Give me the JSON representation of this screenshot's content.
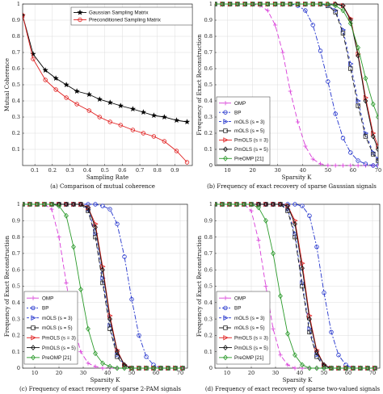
{
  "chart_data": [
    {
      "type": "line",
      "panel": "a",
      "caption": "(a) Comparison of mutual coherence",
      "xlabel": "Sampling Rate",
      "ylabel": "Mutual Coherence",
      "xlim": [
        0.03,
        1.0
      ],
      "ylim": [
        0.0,
        1.0
      ],
      "xticks": [
        "0.1",
        "0.2",
        "0.3",
        "0.4",
        "0.5",
        "0.6",
        "0.7",
        "0.8",
        "0.9"
      ],
      "yticks": [
        "0.1",
        "0.2",
        "0.3",
        "0.4",
        "0.5",
        "0.6",
        "0.7",
        "0.8",
        "0.9",
        "1"
      ],
      "grid": true,
      "legend_position": "top-right",
      "series": [
        {
          "name": "Gaussian Sampling Matrix",
          "color": "#000000",
          "marker": "star",
          "dash": "",
          "x": [
            0.03,
            0.09,
            0.16,
            0.22,
            0.28,
            0.34,
            0.41,
            0.47,
            0.53,
            0.59,
            0.66,
            0.72,
            0.78,
            0.84,
            0.91,
            0.97
          ],
          "y": [
            0.93,
            0.69,
            0.59,
            0.54,
            0.5,
            0.46,
            0.44,
            0.41,
            0.39,
            0.37,
            0.35,
            0.33,
            0.31,
            0.3,
            0.28,
            0.27
          ]
        },
        {
          "name": "Preconditioned Sampling Matrix",
          "color": "#e01e1e",
          "marker": "circle",
          "dash": "",
          "x": [
            0.03,
            0.09,
            0.16,
            0.22,
            0.28,
            0.34,
            0.41,
            0.47,
            0.53,
            0.59,
            0.66,
            0.72,
            0.78,
            0.84,
            0.91,
            0.97
          ],
          "y": [
            0.93,
            0.66,
            0.53,
            0.47,
            0.42,
            0.38,
            0.34,
            0.3,
            0.27,
            0.25,
            0.22,
            0.2,
            0.18,
            0.15,
            0.09,
            0.02
          ]
        }
      ]
    },
    {
      "type": "line",
      "panel": "b",
      "caption": "(b) Frequency of exact recovery of sparse Gaussian signals",
      "xlabel": "Sparsity K",
      "ylabel": "Frequency of Exact Reconstruction",
      "xlim": [
        5,
        70
      ],
      "ylim": [
        0,
        1
      ],
      "xticks": [
        "10",
        "20",
        "30",
        "40",
        "50",
        "60",
        "70"
      ],
      "yticks": [
        "0",
        "0.1",
        "0.2",
        "0.3",
        "0.4",
        "0.5",
        "0.6",
        "0.7",
        "0.8",
        "0.9",
        "1"
      ],
      "grid": true,
      "legend_position": "bottom-left",
      "x": [
        5,
        8,
        11,
        14,
        17,
        20,
        23,
        26,
        29,
        32,
        35,
        38,
        41,
        44,
        47,
        50,
        53,
        56,
        59,
        62,
        65,
        68,
        70
      ],
      "series": [
        {
          "name": "OMP",
          "color": "#d83ad8",
          "marker": "plus",
          "dash": "6,3",
          "values": [
            1,
            1,
            1,
            1,
            1,
            1,
            0.99,
            0.96,
            0.87,
            0.7,
            0.46,
            0.27,
            0.12,
            0.04,
            0.01,
            0,
            0,
            0,
            0,
            0,
            0,
            0,
            0
          ]
        },
        {
          "name": "BP",
          "color": "#2233cc",
          "marker": "circle",
          "dash": "2,2,6,2",
          "values": [
            1,
            1,
            1,
            1,
            1,
            1,
            1,
            1,
            1,
            1,
            1,
            0.99,
            0.96,
            0.87,
            0.71,
            0.52,
            0.32,
            0.17,
            0.08,
            0.03,
            0.01,
            0,
            0
          ]
        },
        {
          "name": "mOLS (s = 3)",
          "color": "#2233cc",
          "marker": "triangle-right",
          "dash": "3,3",
          "values": [
            1,
            1,
            1,
            1,
            1,
            1,
            1,
            1,
            1,
            1,
            1,
            1,
            1,
            1,
            1,
            0.99,
            0.96,
            0.84,
            0.63,
            0.4,
            0.2,
            0.08,
            0.04
          ]
        },
        {
          "name": "mOLS (s = 5)",
          "color": "#222222",
          "marker": "square",
          "dash": "6,3",
          "values": [
            1,
            1,
            1,
            1,
            1,
            1,
            1,
            1,
            1,
            1,
            1,
            1,
            1,
            1,
            1,
            0.99,
            0.95,
            0.82,
            0.6,
            0.37,
            0.18,
            0.07,
            0.03
          ]
        },
        {
          "name": "PmOLS (s = 3)",
          "color": "#e01e1e",
          "marker": "triangle-right",
          "dash": "",
          "values": [
            1,
            1,
            1,
            1,
            1,
            1,
            1,
            1,
            1,
            1,
            1,
            1,
            1,
            1,
            1,
            1,
            1,
            0.99,
            0.91,
            0.69,
            0.42,
            0.2,
            0.12
          ]
        },
        {
          "name": "PmOLS (s = 5)",
          "color": "#111111",
          "marker": "diamond",
          "dash": "",
          "values": [
            1,
            1,
            1,
            1,
            1,
            1,
            1,
            1,
            1,
            1,
            1,
            1,
            1,
            1,
            1,
            1,
            1,
            0.99,
            0.9,
            0.68,
            0.4,
            0.18,
            0.1
          ]
        },
        {
          "name": "PreOMP [21]",
          "color": "#2a9a2a",
          "marker": "diamond",
          "dash": "",
          "values": [
            1,
            1,
            1,
            1,
            1,
            1,
            1,
            1,
            1,
            1,
            1,
            1,
            1,
            1,
            1,
            1,
            0.99,
            0.96,
            0.88,
            0.73,
            0.54,
            0.38,
            0.3
          ]
        }
      ]
    },
    {
      "type": "line",
      "panel": "c",
      "caption": "(c) Frequency of exact recovery of sparse 2-PAM signals",
      "xlabel": "Sparsity K",
      "ylabel": "Frequency of Exact Reconstruction",
      "xlim": [
        5,
        73
      ],
      "ylim": [
        0,
        1
      ],
      "xticks": [
        "10",
        "20",
        "30",
        "40",
        "50",
        "60",
        "70"
      ],
      "yticks": [
        "0",
        "0.1",
        "0.2",
        "0.3",
        "0.4",
        "0.5",
        "0.6",
        "0.7",
        "0.8",
        "0.9",
        "1"
      ],
      "grid": true,
      "legend_position": "bottom-left",
      "x": [
        5,
        8,
        11,
        14,
        17,
        20,
        23,
        26,
        29,
        32,
        35,
        38,
        41,
        44,
        47,
        50,
        53,
        56,
        59,
        62,
        65,
        68,
        71
      ],
      "series": [
        {
          "name": "OMP",
          "color": "#d83ad8",
          "marker": "plus",
          "dash": "6,3",
          "values": [
            1,
            1,
            1,
            1,
            0.97,
            0.8,
            0.52,
            0.26,
            0.1,
            0.03,
            0.01,
            0,
            0,
            0,
            0,
            0,
            0,
            0,
            0,
            0,
            0,
            0,
            0
          ]
        },
        {
          "name": "BP",
          "color": "#2233cc",
          "marker": "circle",
          "dash": "2,2,6,2",
          "values": [
            1,
            1,
            1,
            1,
            1,
            1,
            1,
            1,
            1,
            1,
            1,
            0.99,
            0.97,
            0.88,
            0.68,
            0.42,
            0.2,
            0.07,
            0.02,
            0,
            0,
            0,
            0
          ]
        },
        {
          "name": "mOLS (s = 3)",
          "color": "#2233cc",
          "marker": "triangle-right",
          "dash": "3,3",
          "values": [
            1,
            1,
            1,
            1,
            1,
            1,
            1,
            1,
            1,
            0.97,
            0.82,
            0.55,
            0.26,
            0.08,
            0.02,
            0,
            0,
            0,
            0,
            0,
            0,
            0,
            0
          ]
        },
        {
          "name": "mOLS (s = 5)",
          "color": "#222222",
          "marker": "square",
          "dash": "6,3",
          "values": [
            1,
            1,
            1,
            1,
            1,
            1,
            1,
            1,
            1,
            0.96,
            0.8,
            0.52,
            0.24,
            0.07,
            0.01,
            0,
            0,
            0,
            0,
            0,
            0,
            0,
            0
          ]
        },
        {
          "name": "PmOLS (s = 3)",
          "color": "#e01e1e",
          "marker": "triangle-right",
          "dash": "",
          "values": [
            1,
            1,
            1,
            1,
            1,
            1,
            1,
            1,
            1,
            0.98,
            0.88,
            0.62,
            0.32,
            0.11,
            0.02,
            0,
            0,
            0,
            0,
            0,
            0,
            0,
            0
          ]
        },
        {
          "name": "PmOLS (s = 5)",
          "color": "#111111",
          "marker": "diamond",
          "dash": "",
          "values": [
            1,
            1,
            1,
            1,
            1,
            1,
            1,
            1,
            1,
            0.98,
            0.86,
            0.6,
            0.3,
            0.1,
            0.02,
            0,
            0,
            0,
            0,
            0,
            0,
            0,
            0
          ]
        },
        {
          "name": "PreOMP [21]",
          "color": "#2a9a2a",
          "marker": "diamond",
          "dash": "",
          "values": [
            1,
            1,
            1,
            1,
            1,
            0.99,
            0.93,
            0.74,
            0.48,
            0.24,
            0.09,
            0.03,
            0.01,
            0,
            0,
            0,
            0,
            0,
            0,
            0,
            0,
            0,
            0
          ]
        }
      ]
    },
    {
      "type": "line",
      "panel": "d",
      "caption": "(d) Frequency of exact recovery of sparse two-valued signals",
      "xlabel": "Sparsity K",
      "ylabel": "Frequency of Exact Reconstruction",
      "xlim": [
        5,
        73
      ],
      "ylim": [
        0,
        1
      ],
      "xticks": [
        "10",
        "20",
        "30",
        "40",
        "50",
        "60",
        "70"
      ],
      "yticks": [
        "0",
        "0.1",
        "0.2",
        "0.3",
        "0.4",
        "0.5",
        "0.6",
        "0.7",
        "0.8",
        "0.9",
        "1"
      ],
      "grid": true,
      "legend_position": "bottom-left",
      "x": [
        5,
        8,
        11,
        14,
        17,
        20,
        23,
        26,
        29,
        32,
        35,
        38,
        41,
        44,
        47,
        50,
        53,
        56,
        59,
        62,
        65,
        68,
        71
      ],
      "series": [
        {
          "name": "OMP",
          "color": "#d83ad8",
          "marker": "plus",
          "dash": "6,3",
          "values": [
            1,
            1,
            1,
            1,
            1,
            0.96,
            0.78,
            0.5,
            0.24,
            0.08,
            0.02,
            0,
            0,
            0,
            0,
            0,
            0,
            0,
            0,
            0,
            0,
            0,
            0
          ]
        },
        {
          "name": "BP",
          "color": "#2233cc",
          "marker": "circle",
          "dash": "2,2,6,2",
          "values": [
            1,
            1,
            1,
            1,
            1,
            1,
            1,
            1,
            1,
            1,
            1,
            1,
            0.99,
            0.93,
            0.74,
            0.46,
            0.22,
            0.08,
            0.02,
            0,
            0,
            0,
            0
          ]
        },
        {
          "name": "mOLS (s = 3)",
          "color": "#2233cc",
          "marker": "triangle-right",
          "dash": "3,3",
          "values": [
            1,
            1,
            1,
            1,
            1,
            1,
            1,
            1,
            1,
            1,
            0.97,
            0.82,
            0.52,
            0.24,
            0.08,
            0.02,
            0,
            0,
            0,
            0,
            0,
            0,
            0
          ]
        },
        {
          "name": "mOLS (s = 5)",
          "color": "#222222",
          "marker": "square",
          "dash": "6,3",
          "values": [
            1,
            1,
            1,
            1,
            1,
            1,
            1,
            1,
            1,
            1,
            0.96,
            0.8,
            0.5,
            0.22,
            0.07,
            0.01,
            0,
            0,
            0,
            0,
            0,
            0,
            0
          ]
        },
        {
          "name": "PmOLS (s = 3)",
          "color": "#e01e1e",
          "marker": "triangle-right",
          "dash": "",
          "values": [
            1,
            1,
            1,
            1,
            1,
            1,
            1,
            1,
            1,
            1,
            0.99,
            0.9,
            0.64,
            0.32,
            0.11,
            0.02,
            0,
            0,
            0,
            0,
            0,
            0,
            0
          ]
        },
        {
          "name": "PmOLS (s = 5)",
          "color": "#111111",
          "marker": "diamond",
          "dash": "",
          "values": [
            1,
            1,
            1,
            1,
            1,
            1,
            1,
            1,
            1,
            1,
            0.99,
            0.88,
            0.61,
            0.3,
            0.1,
            0.02,
            0,
            0,
            0,
            0,
            0,
            0,
            0
          ]
        },
        {
          "name": "PreOMP [21]",
          "color": "#2a9a2a",
          "marker": "diamond",
          "dash": "",
          "values": [
            1,
            1,
            1,
            1,
            1,
            1,
            0.98,
            0.9,
            0.7,
            0.44,
            0.21,
            0.08,
            0.02,
            0,
            0,
            0,
            0,
            0,
            0,
            0,
            0,
            0,
            0
          ]
        }
      ]
    }
  ]
}
